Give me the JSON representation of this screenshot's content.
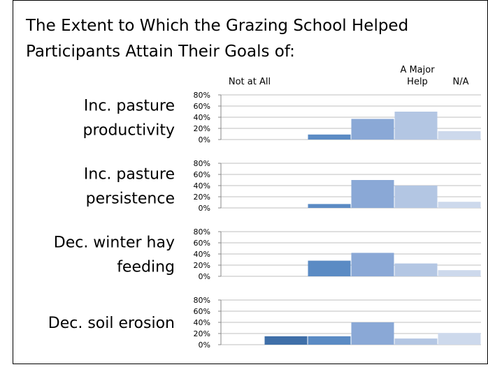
{
  "title": [
    "The Extent to Which the Grazing School Helped",
    "Participants Attain Their Goals of:"
  ],
  "categories": [
    "Not at All",
    null,
    null,
    null,
    "A Major Help",
    "N/A"
  ],
  "colors": [
    "#3a64a0",
    "#3f6fa8",
    "#5b8bc4",
    "#8aa8d6",
    "#b3c6e3",
    "#cdd9ec"
  ],
  "chart_data": [
    {
      "type": "bar",
      "title": [
        "Inc. pasture",
        "productivity"
      ],
      "values": [
        0,
        0,
        9,
        37,
        50,
        15
      ],
      "ylim": [
        0,
        80
      ],
      "yticks": [
        {
          "value": 0,
          "label": "0%"
        },
        {
          "value": 20,
          "label": "20%"
        },
        {
          "value": 40,
          "label": "40%"
        },
        {
          "value": 60,
          "label": "60%"
        },
        {
          "value": 80,
          "label": "80%"
        }
      ],
      "grid": true
    },
    {
      "type": "bar",
      "title": [
        "Inc. pasture",
        "persistence"
      ],
      "values": [
        0,
        0,
        7,
        50,
        40,
        11
      ],
      "ylim": [
        0,
        80
      ],
      "yticks": [
        {
          "value": 0,
          "label": "0%"
        },
        {
          "value": 20,
          "label": "20%"
        },
        {
          "value": 40,
          "label": "40%"
        },
        {
          "value": 60,
          "label": "60%"
        },
        {
          "value": 80,
          "label": "80%"
        }
      ],
      "grid": true
    },
    {
      "type": "bar",
      "title": [
        "Dec. winter hay",
        "feeding"
      ],
      "values": [
        0,
        0,
        28,
        42,
        23,
        11
      ],
      "ylim": [
        0,
        80
      ],
      "yticks": [
        {
          "value": 0,
          "label": "0%"
        },
        {
          "value": 20,
          "label": "20%"
        },
        {
          "value": 40,
          "label": "40%"
        },
        {
          "value": 60,
          "label": "60%"
        },
        {
          "value": 80,
          "label": "80%"
        }
      ],
      "grid": true
    },
    {
      "type": "bar",
      "title": [
        "Dec. soil erosion"
      ],
      "values": [
        0,
        15,
        15,
        40,
        11,
        21
      ],
      "ylim": [
        0,
        80
      ],
      "yticks": [
        {
          "value": 0,
          "label": "0%"
        },
        {
          "value": 20,
          "label": "20%"
        },
        {
          "value": 40,
          "label": "40%"
        },
        {
          "value": 60,
          "label": "60%"
        },
        {
          "value": 80,
          "label": "80%"
        }
      ],
      "grid": true
    }
  ]
}
